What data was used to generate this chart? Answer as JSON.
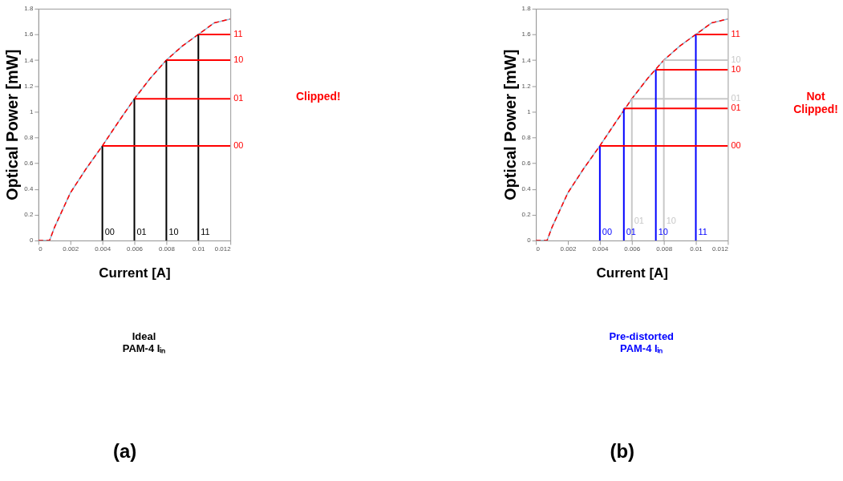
{
  "chart_data": [
    {
      "type": "line",
      "xlabel": "Current [A]",
      "ylabel": "Optical Power [mW]",
      "xlim": [
        0,
        0.012
      ],
      "ylim": [
        0,
        1.8
      ],
      "xticks": [
        0,
        0.002,
        0.004,
        0.006,
        0.008,
        0.01,
        0.012
      ],
      "yticks": [
        0,
        0.2,
        0.4,
        0.6,
        0.8,
        1,
        1.2,
        1.4,
        1.6,
        1.8
      ],
      "grid": false,
      "series": [
        {
          "color": "#8fbcd8",
          "line_style": "solid",
          "x": [
            0,
            0.0005,
            0.0007,
            0.001,
            0.002,
            0.003,
            0.004,
            0.005,
            0.006,
            0.007,
            0.008,
            0.009,
            0.01,
            0.011,
            0.012
          ],
          "values": [
            0,
            0,
            0,
            0.1,
            0.37,
            0.56,
            0.735,
            0.92,
            1.1,
            1.26,
            1.4,
            1.51,
            1.6,
            1.69,
            1.72
          ]
        },
        {
          "color": "#ff0000",
          "line_style": "dashed",
          "x": [
            0,
            0.0005,
            0.0007,
            0.001,
            0.002,
            0.003,
            0.004,
            0.005,
            0.006,
            0.007,
            0.008,
            0.009,
            0.01,
            0.011,
            0.012
          ],
          "values": [
            0,
            0,
            0,
            0.1,
            0.37,
            0.56,
            0.735,
            0.92,
            1.1,
            1.26,
            1.4,
            1.51,
            1.6,
            1.69,
            1.72
          ]
        },
        {
          "color": "#000000",
          "line_style": "solid",
          "x": [
            0.004,
            0.004
          ],
          "values": [
            0,
            0.735
          ]
        },
        {
          "color": "#000000",
          "line_style": "solid",
          "x": [
            0.006,
            0.006
          ],
          "values": [
            0,
            1.1
          ]
        },
        {
          "color": "#000000",
          "line_style": "solid",
          "x": [
            0.008,
            0.008
          ],
          "values": [
            0,
            1.4
          ]
        },
        {
          "color": "#000000",
          "line_style": "solid",
          "x": [
            0.01,
            0.01
          ],
          "values": [
            0,
            1.6
          ]
        },
        {
          "color": "#ff0000",
          "line_style": "solid",
          "x": [
            0.004,
            0.012
          ],
          "values": [
            0.735,
            0.735
          ]
        },
        {
          "color": "#ff0000",
          "line_style": "solid",
          "x": [
            0.006,
            0.012
          ],
          "values": [
            1.1,
            1.1
          ]
        },
        {
          "color": "#ff0000",
          "line_style": "solid",
          "x": [
            0.008,
            0.012
          ],
          "values": [
            1.4,
            1.4
          ]
        },
        {
          "color": "#ff0000",
          "line_style": "solid",
          "x": [
            0.01,
            0.012
          ],
          "values": [
            1.6,
            1.6
          ]
        }
      ],
      "annotations": [
        {
          "text": "00",
          "x": 0.004,
          "y": 0
        },
        {
          "text": "01",
          "x": 0.006,
          "y": 0
        },
        {
          "text": "10",
          "x": 0.008,
          "y": 0
        },
        {
          "text": "11",
          "x": 0.01,
          "y": 0
        },
        {
          "text": "00",
          "x": 0.012,
          "y": 0.735
        },
        {
          "text": "01",
          "x": 0.012,
          "y": 1.1
        },
        {
          "text": "10",
          "x": 0.012,
          "y": 1.4
        },
        {
          "text": "11",
          "x": 0.012,
          "y": 1.6
        },
        "Clipped!",
        "Ideal\nPAM-4 Iᵢₙ",
        "(a)"
      ]
    },
    {
      "type": "line",
      "xlabel": "Current [A]",
      "ylabel": "Optical Power [mW]",
      "xlim": [
        0,
        0.012
      ],
      "ylim": [
        0,
        1.8
      ],
      "xticks": [
        0,
        0.002,
        0.004,
        0.006,
        0.008,
        0.01,
        0.012
      ],
      "yticks": [
        0,
        0.2,
        0.4,
        0.6,
        0.8,
        1,
        1.2,
        1.4,
        1.6,
        1.8
      ],
      "grid": false,
      "series": [
        {
          "color": "#8fbcd8",
          "line_style": "solid",
          "x": [
            0,
            0.0005,
            0.0007,
            0.001,
            0.002,
            0.003,
            0.004,
            0.005,
            0.006,
            0.007,
            0.008,
            0.009,
            0.01,
            0.011,
            0.012
          ],
          "values": [
            0,
            0,
            0,
            0.1,
            0.37,
            0.56,
            0.735,
            0.92,
            1.1,
            1.26,
            1.4,
            1.51,
            1.6,
            1.69,
            1.72
          ]
        },
        {
          "color": "#ff0000",
          "line_style": "dashed",
          "x": [
            0,
            0.0005,
            0.0007,
            0.001,
            0.002,
            0.003,
            0.004,
            0.005,
            0.006,
            0.007,
            0.008,
            0.009,
            0.01,
            0.011,
            0.012
          ],
          "values": [
            0,
            0,
            0,
            0.1,
            0.37,
            0.56,
            0.735,
            0.92,
            1.1,
            1.26,
            1.4,
            1.51,
            1.6,
            1.69,
            1.72
          ]
        },
        {
          "color": "#c8c8c8",
          "line_style": "solid",
          "x": [
            0.006,
            0.006
          ],
          "values": [
            0,
            1.1
          ]
        },
        {
          "color": "#c8c8c8",
          "line_style": "solid",
          "x": [
            0.008,
            0.008
          ],
          "values": [
            0,
            1.4
          ]
        },
        {
          "color": "#c8c8c8",
          "line_style": "solid",
          "x": [
            0.006,
            0.012
          ],
          "values": [
            1.1,
            1.1
          ]
        },
        {
          "color": "#c8c8c8",
          "line_style": "solid",
          "x": [
            0.008,
            0.012
          ],
          "values": [
            1.4,
            1.4
          ]
        },
        {
          "color": "#0000ff",
          "line_style": "solid",
          "x": [
            0.004,
            0.004
          ],
          "values": [
            0,
            0.735
          ]
        },
        {
          "color": "#0000ff",
          "line_style": "solid",
          "x": [
            0.0055,
            0.0055
          ],
          "values": [
            0,
            1.025
          ]
        },
        {
          "color": "#0000ff",
          "line_style": "solid",
          "x": [
            0.0075,
            0.0075
          ],
          "values": [
            0,
            1.325
          ]
        },
        {
          "color": "#0000ff",
          "line_style": "solid",
          "x": [
            0.01,
            0.01
          ],
          "values": [
            0,
            1.6
          ]
        },
        {
          "color": "#ff0000",
          "line_style": "solid",
          "x": [
            0.004,
            0.012
          ],
          "values": [
            0.735,
            0.735
          ]
        },
        {
          "color": "#ff0000",
          "line_style": "solid",
          "x": [
            0.0055,
            0.012
          ],
          "values": [
            1.025,
            1.025
          ]
        },
        {
          "color": "#ff0000",
          "line_style": "solid",
          "x": [
            0.0075,
            0.012
          ],
          "values": [
            1.325,
            1.325
          ]
        },
        {
          "color": "#ff0000",
          "line_style": "solid",
          "x": [
            0.01,
            0.012
          ],
          "values": [
            1.6,
            1.6
          ]
        }
      ],
      "annotations": [
        {
          "text": "00",
          "x": 0.004,
          "y": 0
        },
        {
          "text": "01",
          "x": 0.0055,
          "y": 0
        },
        {
          "text": "01",
          "x": 0.006,
          "y": 0
        },
        {
          "text": "10",
          "x": 0.0075,
          "y": 0
        },
        {
          "text": "10",
          "x": 0.008,
          "y": 0
        },
        {
          "text": "11",
          "x": 0.01,
          "y": 0
        },
        {
          "text": "00",
          "x": 0.012,
          "y": 0.735
        },
        {
          "text": "01",
          "x": 0.012,
          "y": 1.025
        },
        {
          "text": "01",
          "x": 0.012,
          "y": 1.1
        },
        {
          "text": "10",
          "x": 0.012,
          "y": 1.325
        },
        {
          "text": "10",
          "x": 0.012,
          "y": 1.4
        },
        {
          "text": "11",
          "x": 0.012,
          "y": 1.6
        },
        "Not\nClipped!",
        "Pre-distorted\nPAM-4 Iᵢₙ",
        "(b)"
      ]
    }
  ]
}
